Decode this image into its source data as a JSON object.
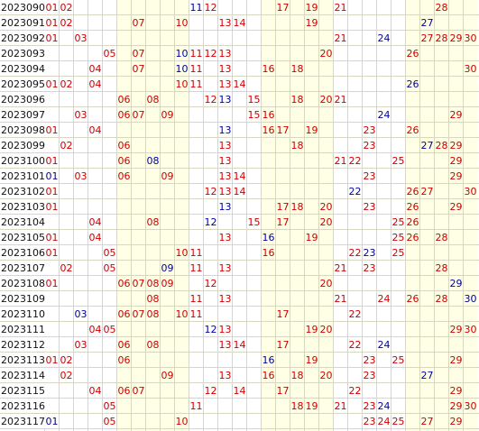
{
  "colors": {
    "red": "#cc0000",
    "blue": "#000099",
    "highlight_band": "#ffffe6",
    "gridline": "#d9d6c2",
    "period_text": "#111111"
  },
  "rows": [
    {
      "period": "2023090",
      "red": [
        "01",
        "02",
        "12",
        "17",
        "19",
        "21",
        "28"
      ],
      "blue": [
        "11"
      ]
    },
    {
      "period": "2023091",
      "red": [
        "01",
        "02",
        "07",
        "10",
        "13",
        "14",
        "19"
      ],
      "blue": [
        "27"
      ]
    },
    {
      "period": "2023092",
      "red": [
        "01",
        "03",
        "21",
        "27",
        "28",
        "29",
        "30"
      ],
      "blue": [
        "24"
      ]
    },
    {
      "period": "2023093",
      "red": [
        "05",
        "07",
        "11",
        "12",
        "13",
        "20",
        "26"
      ],
      "blue": [
        "10"
      ]
    },
    {
      "period": "2023094",
      "red": [
        "04",
        "07",
        "11",
        "13",
        "16",
        "18",
        "30"
      ],
      "blue": [
        "10"
      ]
    },
    {
      "period": "2023095",
      "red": [
        "01",
        "02",
        "04",
        "10",
        "11",
        "13",
        "14"
      ],
      "blue": [
        "26"
      ]
    },
    {
      "period": "2023096",
      "red": [
        "06",
        "08",
        "12",
        "15",
        "18",
        "20",
        "21"
      ],
      "blue": [
        "13"
      ]
    },
    {
      "period": "2023097",
      "red": [
        "03",
        "06",
        "07",
        "09",
        "15",
        "16",
        "29"
      ],
      "blue": [
        "24"
      ]
    },
    {
      "period": "2023098",
      "red": [
        "01",
        "04",
        "16",
        "17",
        "19",
        "23",
        "26"
      ],
      "blue": [
        "13"
      ]
    },
    {
      "period": "2023099",
      "red": [
        "02",
        "06",
        "13",
        "18",
        "23",
        "28",
        "29"
      ],
      "blue": [
        "27"
      ]
    },
    {
      "period": "2023100",
      "red": [
        "01",
        "06",
        "13",
        "21",
        "22",
        "25",
        "29"
      ],
      "blue": [
        "08"
      ]
    },
    {
      "period": "2023101",
      "red": [
        "03",
        "06",
        "09",
        "13",
        "14",
        "23",
        "29"
      ],
      "blue": [
        "01"
      ]
    },
    {
      "period": "2023102",
      "red": [
        "01",
        "12",
        "13",
        "14",
        "26",
        "27",
        "30"
      ],
      "blue": [
        "22"
      ]
    },
    {
      "period": "2023103",
      "red": [
        "01",
        "17",
        "18",
        "20",
        "23",
        "26",
        "29"
      ],
      "blue": [
        "13"
      ]
    },
    {
      "period": "2023104",
      "red": [
        "04",
        "08",
        "15",
        "17",
        "20",
        "25",
        "26"
      ],
      "blue": [
        "12"
      ]
    },
    {
      "period": "2023105",
      "red": [
        "01",
        "04",
        "13",
        "19",
        "25",
        "26",
        "28"
      ],
      "blue": [
        "16"
      ]
    },
    {
      "period": "2023106",
      "red": [
        "01",
        "05",
        "10",
        "11",
        "16",
        "22",
        "25"
      ],
      "blue": [
        "23"
      ]
    },
    {
      "period": "2023107",
      "red": [
        "02",
        "05",
        "11",
        "13",
        "21",
        "23",
        "28"
      ],
      "blue": [
        "09"
      ]
    },
    {
      "period": "2023108",
      "red": [
        "01",
        "06",
        "07",
        "08",
        "09",
        "12",
        "20"
      ],
      "blue": [
        "29"
      ]
    },
    {
      "period": "2023109",
      "red": [
        "08",
        "11",
        "13",
        "21",
        "24",
        "26",
        "28"
      ],
      "blue": [
        "30"
      ]
    },
    {
      "period": "2023110",
      "red": [
        "06",
        "07",
        "08",
        "10",
        "11",
        "17",
        "22"
      ],
      "blue": [
        "03"
      ]
    },
    {
      "period": "2023111",
      "red": [
        "04",
        "05",
        "13",
        "19",
        "20",
        "29",
        "30"
      ],
      "blue": [
        "12"
      ]
    },
    {
      "period": "2023112",
      "red": [
        "03",
        "06",
        "08",
        "13",
        "14",
        "17",
        "22"
      ],
      "blue": [
        "24"
      ]
    },
    {
      "period": "2023113",
      "red": [
        "01",
        "02",
        "06",
        "19",
        "23",
        "25",
        "29"
      ],
      "blue": [
        "16"
      ]
    },
    {
      "period": "2023114",
      "red": [
        "02",
        "09",
        "13",
        "16",
        "18",
        "20",
        "23"
      ],
      "blue": [
        "27"
      ]
    },
    {
      "period": "2023115",
      "red": [
        "04",
        "06",
        "07",
        "12",
        "14",
        "17",
        "22",
        "29"
      ],
      "blue": []
    },
    {
      "period": "2023116",
      "red": [
        "05",
        "11",
        "18",
        "19",
        "21",
        "23",
        "29",
        "30"
      ],
      "blue": [
        "24"
      ]
    },
    {
      "period": "2023117",
      "red": [
        "05",
        "10",
        "23",
        "24",
        "25",
        "27",
        "29"
      ],
      "blue": [
        "01"
      ]
    }
  ]
}
